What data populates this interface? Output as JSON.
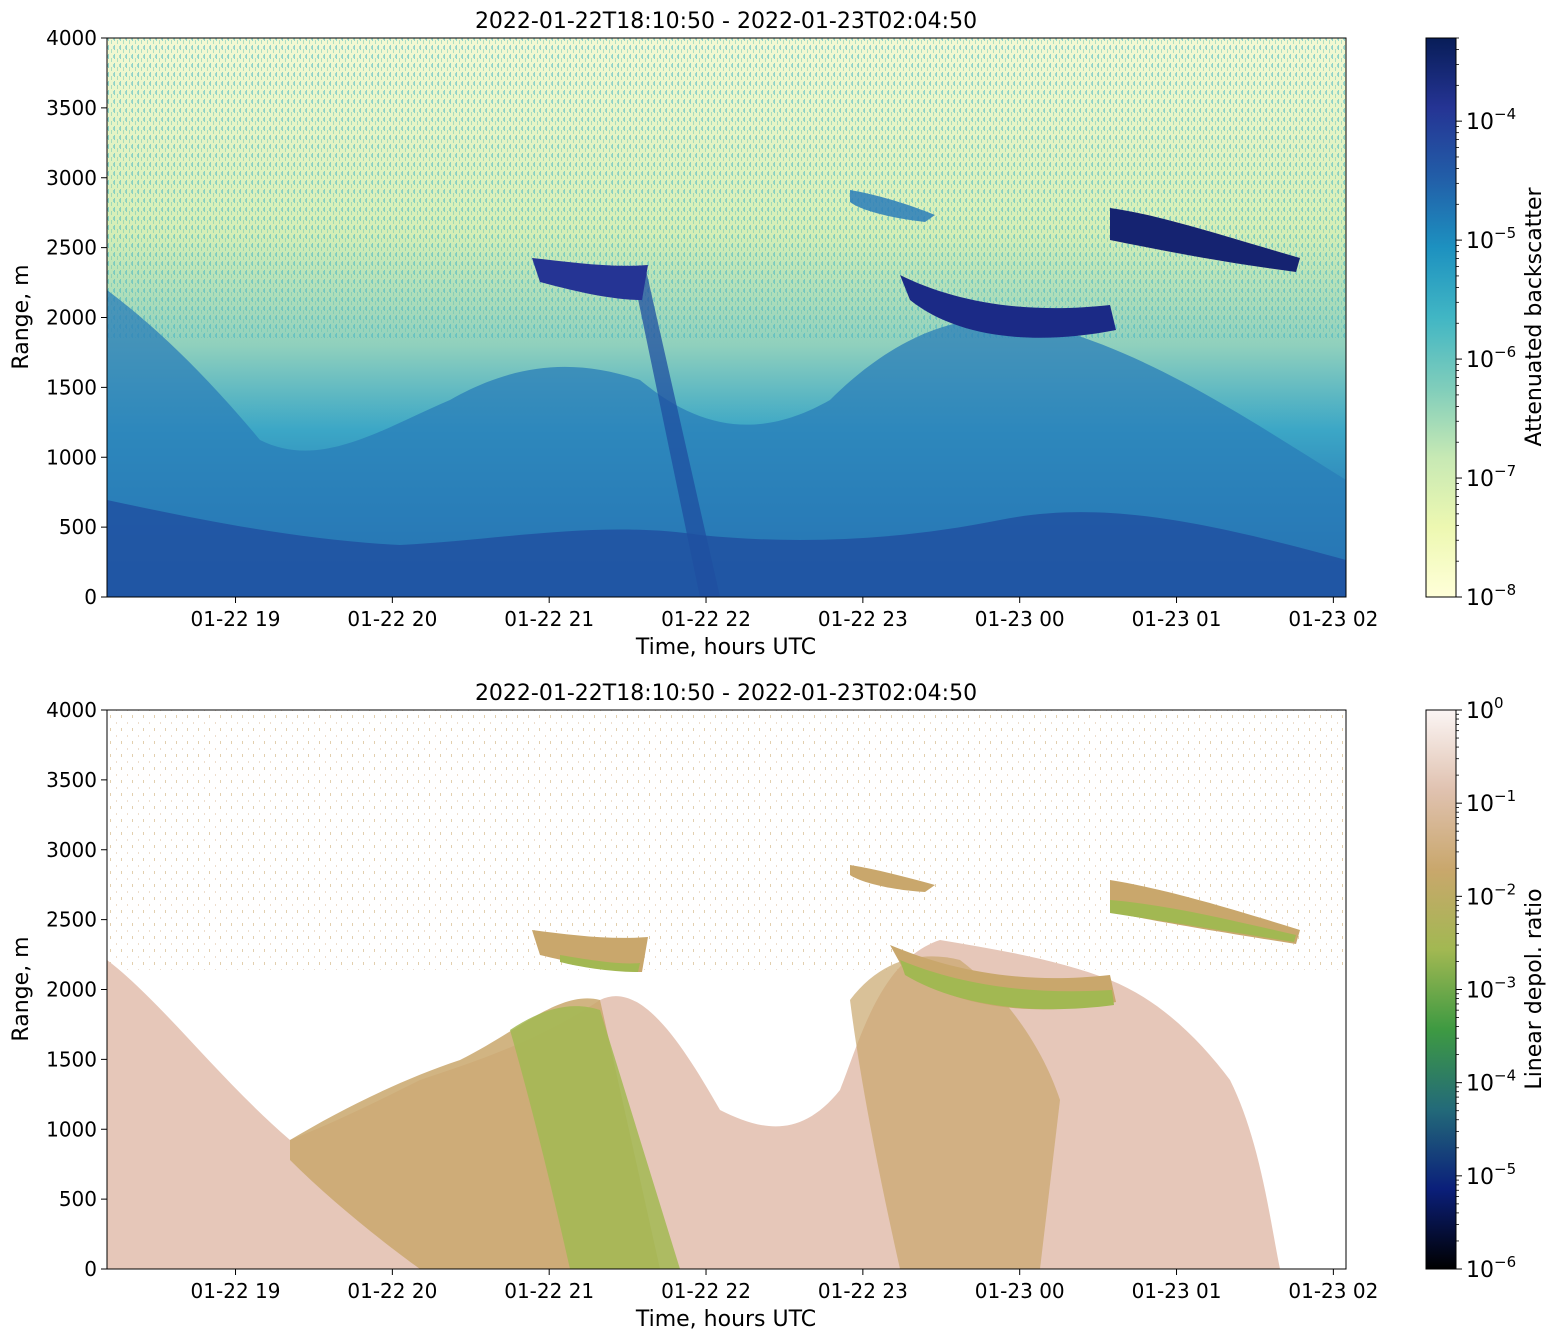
{
  "chart_data": [
    {
      "type": "heatmap",
      "title": "2022-01-22T18:10:50 - 2022-01-23T02:04:50",
      "xlabel": "Time, hours UTC",
      "ylabel": "Range, m",
      "xlim": [
        "2022-01-22T18:10:50",
        "2022-01-23T02:04:50"
      ],
      "ylim": [
        0,
        4000
      ],
      "x_ticks": [
        {
          "value": "2022-01-22T19:00",
          "label": "01-22 19"
        },
        {
          "value": "2022-01-22T20:00",
          "label": "01-22 20"
        },
        {
          "value": "2022-01-22T21:00",
          "label": "01-22 21"
        },
        {
          "value": "2022-01-22T22:00",
          "label": "01-22 22"
        },
        {
          "value": "2022-01-22T23:00",
          "label": "01-22 23"
        },
        {
          "value": "2022-01-23T00:00",
          "label": "01-23 00"
        },
        {
          "value": "2022-01-23T01:00",
          "label": "01-23 01"
        },
        {
          "value": "2022-01-23T02:00",
          "label": "01-23 02"
        }
      ],
      "y_ticks": [
        0,
        500,
        1000,
        1500,
        2000,
        2500,
        3000,
        3500,
        4000
      ],
      "colorbar": {
        "label": "Attenuated backscatter",
        "scale": "log",
        "range": [
          1e-08,
          0.0005
        ],
        "ticks": [
          {
            "value": 1e-08,
            "label": "10",
            "exp": "−8"
          },
          {
            "value": 1e-07,
            "label": "10",
            "exp": "−7"
          },
          {
            "value": 1e-06,
            "label": "10",
            "exp": "−6"
          },
          {
            "value": 1e-05,
            "label": "10",
            "exp": "−5"
          },
          {
            "value": 0.0001,
            "label": "10",
            "exp": "−4"
          }
        ],
        "colors": [
          "#ffffd9",
          "#edf8b1",
          "#c7e9b4",
          "#7fcdbb",
          "#41b6c4",
          "#1d91c0",
          "#225ea8",
          "#253494",
          "#081d58"
        ]
      }
    },
    {
      "type": "heatmap",
      "title": "2022-01-22T18:10:50 - 2022-01-23T02:04:50",
      "xlabel": "Time, hours UTC",
      "ylabel": "Range, m",
      "xlim": [
        "2022-01-22T18:10:50",
        "2022-01-23T02:04:50"
      ],
      "ylim": [
        0,
        4000
      ],
      "x_ticks": [
        {
          "value": "2022-01-22T19:00",
          "label": "01-22 19"
        },
        {
          "value": "2022-01-22T20:00",
          "label": "01-22 20"
        },
        {
          "value": "2022-01-22T21:00",
          "label": "01-22 21"
        },
        {
          "value": "2022-01-22T22:00",
          "label": "01-22 22"
        },
        {
          "value": "2022-01-22T23:00",
          "label": "01-22 23"
        },
        {
          "value": "2022-01-23T00:00",
          "label": "01-23 00"
        },
        {
          "value": "2022-01-23T01:00",
          "label": "01-23 01"
        },
        {
          "value": "2022-01-23T02:00",
          "label": "01-23 02"
        }
      ],
      "y_ticks": [
        0,
        500,
        1000,
        1500,
        2000,
        2500,
        3000,
        3500,
        4000
      ],
      "colorbar": {
        "label": "Linear depol. ratio",
        "scale": "log",
        "range": [
          1e-06,
          1
        ],
        "ticks": [
          {
            "value": 1e-06,
            "label": "10",
            "exp": "−6"
          },
          {
            "value": 1e-05,
            "label": "10",
            "exp": "−5"
          },
          {
            "value": 0.0001,
            "label": "10",
            "exp": "−4"
          },
          {
            "value": 0.001,
            "label": "10",
            "exp": "−3"
          },
          {
            "value": 0.01,
            "label": "10",
            "exp": "−2"
          },
          {
            "value": 0.1,
            "label": "10",
            "exp": "−1"
          },
          {
            "value": 1,
            "label": "10",
            "exp": "0"
          }
        ],
        "colors": [
          "#000000",
          "#0b1f7a",
          "#236a79",
          "#3e9a42",
          "#a2b852",
          "#c9a76c",
          "#e0c2b0",
          "#fbf5f4"
        ]
      }
    }
  ]
}
